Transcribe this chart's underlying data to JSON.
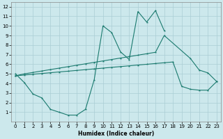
{
  "xlabel": "Humidex (Indice chaleur)",
  "background_color": "#cce8ec",
  "grid_color": "#aacdd4",
  "line_color": "#1a7a6e",
  "xlim": [
    -0.5,
    23.5
  ],
  "ylim": [
    0,
    12.5
  ],
  "xticks": [
    0,
    1,
    2,
    3,
    4,
    5,
    6,
    7,
    8,
    9,
    10,
    11,
    12,
    13,
    14,
    15,
    16,
    17,
    18,
    19,
    20,
    21,
    22,
    23
  ],
  "yticks": [
    1,
    2,
    3,
    4,
    5,
    6,
    7,
    8,
    9,
    10,
    11,
    12
  ],
  "lineA_x": [
    0,
    1,
    2,
    3,
    4,
    5,
    6,
    7,
    8,
    9,
    10,
    11,
    12,
    13,
    14,
    15,
    16,
    17
  ],
  "lineA_y": [
    5.0,
    4.1,
    2.9,
    2.5,
    1.3,
    1.0,
    0.7,
    0.7,
    1.3,
    4.4,
    10.0,
    9.3,
    7.3,
    6.5,
    11.5,
    10.4,
    11.6,
    9.5
  ],
  "lineB_x": [
    0,
    1,
    2,
    3,
    4,
    5,
    6,
    7,
    8,
    9,
    10,
    11,
    12,
    13,
    14,
    15,
    16,
    17,
    20,
    21,
    22,
    23
  ],
  "lineB_y": [
    4.8,
    5.0,
    5.15,
    5.3,
    5.45,
    5.6,
    5.75,
    5.9,
    6.05,
    6.2,
    6.35,
    6.5,
    6.65,
    6.8,
    6.95,
    7.1,
    7.25,
    9.0,
    6.6,
    5.4,
    5.1,
    4.2
  ],
  "lineC_x": [
    0,
    1,
    2,
    3,
    4,
    5,
    6,
    7,
    8,
    9,
    10,
    11,
    12,
    13,
    14,
    15,
    16,
    17,
    18,
    19,
    20,
    21,
    22,
    23
  ],
  "lineC_y": [
    4.8,
    4.88,
    4.96,
    5.04,
    5.12,
    5.2,
    5.28,
    5.36,
    5.44,
    5.52,
    5.6,
    5.68,
    5.76,
    5.84,
    5.92,
    6.0,
    6.08,
    6.16,
    6.24,
    3.7,
    3.4,
    3.3,
    3.3,
    4.2
  ]
}
